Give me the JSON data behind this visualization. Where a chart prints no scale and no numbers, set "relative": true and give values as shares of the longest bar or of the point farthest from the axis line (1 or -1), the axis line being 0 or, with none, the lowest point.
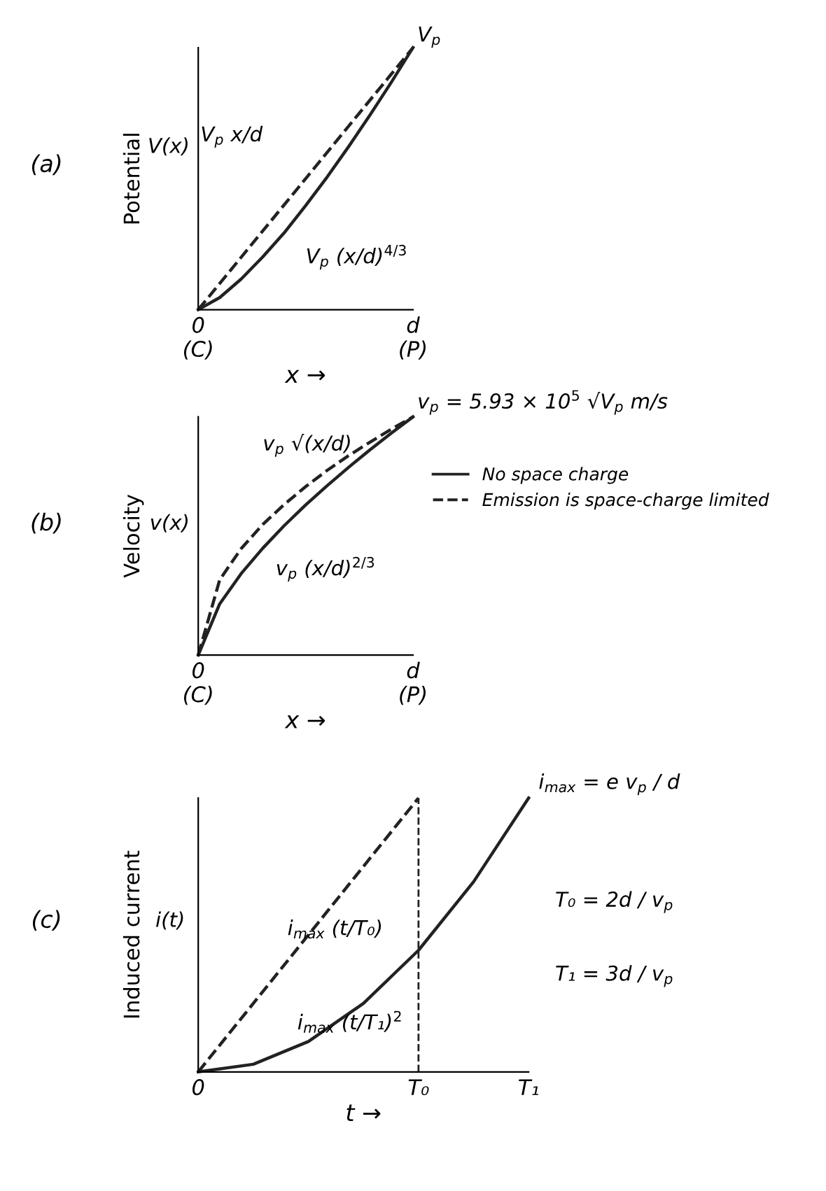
{
  "chart_data": [
    {
      "type": "line",
      "title": "(a)",
      "ylabel": "Potential",
      "xlabel": "x →",
      "relative": true,
      "categories": [
        "0\n(C)",
        null,
        null,
        null,
        null,
        null,
        null,
        null,
        null,
        null,
        "d\n(P)"
      ],
      "series": [
        {
          "color": "#222222",
          "line_style": "dashed",
          "values": [
            0,
            0.1,
            0.2,
            0.3,
            0.4,
            0.5,
            0.6,
            0.7,
            0.8,
            0.9,
            1
          ]
        },
        {
          "color": "#222222",
          "line_style": "solid",
          "values": [
            0,
            0.046,
            0.117,
            0.201,
            0.293,
            0.397,
            0.506,
            0.622,
            0.743,
            0.869,
            1
          ]
        }
      ],
      "annotations": [
        "V(x)",
        "V$_{p}$",
        "V$_{p}$ x/d",
        "V$_{p}$ (x/d)$^{4/3}$"
      ]
    },
    {
      "type": "line",
      "title": "(b)",
      "ylabel": "Velocity",
      "xlabel": "x →",
      "relative": true,
      "legend": "right",
      "categories": [
        "0\n(C)",
        null,
        null,
        null,
        null,
        null,
        null,
        null,
        null,
        null,
        "d\n(P)"
      ],
      "series": [
        {
          "name": "No space charge",
          "color": "#222222",
          "line_style": "solid",
          "values": [
            0,
            0.215,
            0.342,
            0.448,
            0.543,
            0.63,
            0.711,
            0.788,
            0.862,
            0.932,
            1
          ]
        },
        {
          "name": "Emission is space-charge limited",
          "color": "#222222",
          "line_style": "dashed",
          "values": [
            0,
            0.316,
            0.447,
            0.548,
            0.632,
            0.707,
            0.775,
            0.837,
            0.894,
            0.949,
            1
          ]
        }
      ],
      "annotations": [
        "v(x)",
        "v$_{p}$ = 5.93 × 10$^{5}$ √V$_{p}$ m/s",
        "v$_{p}$ √(x/d)",
        "v$_{p}$ (x/d)$^{2/3}$"
      ]
    },
    {
      "type": "line",
      "title": "(c)",
      "ylabel": "Induced current",
      "xlabel": "t →",
      "relative": true,
      "categories": [
        "0",
        null,
        null,
        null,
        "T₀",
        null,
        "T₁"
      ],
      "ref_lines": [
        {
          "axis": "x",
          "value": "T₀",
          "line_style": "dashed",
          "color": "#222222"
        }
      ],
      "series": [
        {
          "color": "#222222",
          "line_style": "dashed",
          "values": [
            0,
            0.25,
            0.5,
            0.75,
            1,
            null,
            null
          ]
        },
        {
          "color": "#222222",
          "line_style": "solid",
          "values": [
            0,
            0.028,
            0.111,
            0.25,
            0.444,
            0.694,
            1
          ]
        }
      ],
      "annotations": [
        "i(t)",
        "i$_{max}$ = e v$_{p}$ / d",
        "T₀ = 2d / v$_{p}$",
        "T₁ = 3d / v$_{p}$",
        "i$_{max}$ (t/T₀)",
        "i$_{max}$ (t/T₁)$^{2}$"
      ]
    }
  ]
}
